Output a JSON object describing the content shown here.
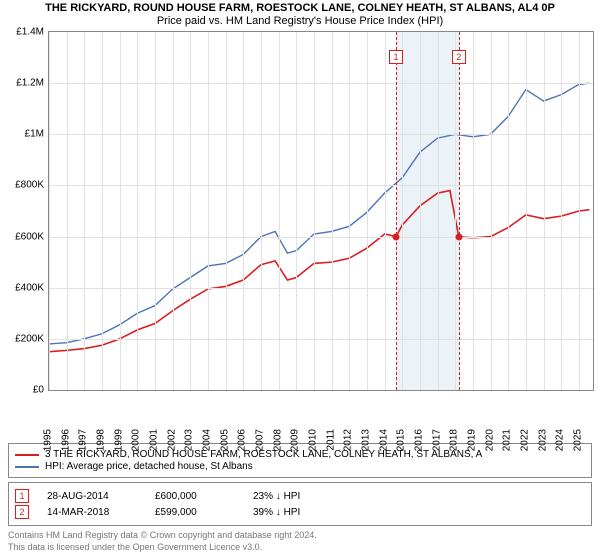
{
  "title_line1": "THE RICKYARD, ROUND HOUSE FARM, ROESTOCK LANE, COLNEY HEATH, ST ALBANS, AL4 0P",
  "title_line2": "Price paid vs. HM Land Registry's House Price Index (HPI)",
  "chart": {
    "type": "line",
    "y_min": 0,
    "y_max": 1400000,
    "y_tick_step": 200000,
    "y_labels": [
      "£0",
      "£200K",
      "£400K",
      "£600K",
      "£800K",
      "£1M",
      "£1.2M",
      "£1.4M"
    ],
    "x_min": 1995,
    "x_max": 2025.8,
    "x_ticks": [
      1995,
      1996,
      1997,
      1998,
      1999,
      2000,
      2001,
      2002,
      2003,
      2004,
      2005,
      2006,
      2007,
      2008,
      2009,
      2010,
      2011,
      2012,
      2013,
      2014,
      2015,
      2016,
      2017,
      2018,
      2019,
      2020,
      2021,
      2022,
      2023,
      2024,
      2025
    ],
    "grid_color": "#e2e2e2",
    "shade_color": "#dbe7f3",
    "shade_start": 2014.65,
    "shade_end": 2018.2,
    "series": {
      "price_paid": {
        "color": "#d81e1e",
        "width": 1.6,
        "label": "3 THE RICKYARD, ROUND HOUSE FARM, ROESTOCK LANE, COLNEY HEATH, ST ALBANS, A",
        "points": [
          [
            1995,
            150000
          ],
          [
            1996,
            155000
          ],
          [
            1997,
            162000
          ],
          [
            1998,
            175000
          ],
          [
            1999,
            200000
          ],
          [
            2000,
            235000
          ],
          [
            2001,
            260000
          ],
          [
            2002,
            310000
          ],
          [
            2003,
            355000
          ],
          [
            2004,
            395000
          ],
          [
            2005,
            405000
          ],
          [
            2006,
            430000
          ],
          [
            2007,
            490000
          ],
          [
            2007.8,
            505000
          ],
          [
            2008.5,
            430000
          ],
          [
            2009,
            440000
          ],
          [
            2010,
            495000
          ],
          [
            2011,
            500000
          ],
          [
            2012,
            515000
          ],
          [
            2013,
            555000
          ],
          [
            2014,
            610000
          ],
          [
            2014.65,
            600000
          ],
          [
            2015,
            645000
          ],
          [
            2016,
            720000
          ],
          [
            2017,
            770000
          ],
          [
            2017.7,
            780000
          ],
          [
            2018.2,
            599000
          ],
          [
            2019,
            595000
          ],
          [
            2020,
            600000
          ],
          [
            2021,
            635000
          ],
          [
            2022,
            685000
          ],
          [
            2023,
            670000
          ],
          [
            2024,
            680000
          ],
          [
            2025,
            700000
          ],
          [
            2025.6,
            705000
          ]
        ]
      },
      "hpi": {
        "color": "#4a74b8",
        "width": 1.4,
        "label": "HPI: Average price, detached house, St Albans",
        "points": [
          [
            1995,
            180000
          ],
          [
            1996,
            185000
          ],
          [
            1997,
            200000
          ],
          [
            1998,
            220000
          ],
          [
            1999,
            255000
          ],
          [
            2000,
            300000
          ],
          [
            2001,
            330000
          ],
          [
            2002,
            395000
          ],
          [
            2003,
            440000
          ],
          [
            2004,
            485000
          ],
          [
            2005,
            495000
          ],
          [
            2006,
            530000
          ],
          [
            2007,
            600000
          ],
          [
            2007.8,
            620000
          ],
          [
            2008.5,
            535000
          ],
          [
            2009,
            545000
          ],
          [
            2010,
            610000
          ],
          [
            2011,
            620000
          ],
          [
            2012,
            640000
          ],
          [
            2013,
            695000
          ],
          [
            2014,
            770000
          ],
          [
            2015,
            830000
          ],
          [
            2016,
            930000
          ],
          [
            2017,
            985000
          ],
          [
            2018,
            1000000
          ],
          [
            2019,
            990000
          ],
          [
            2020,
            1000000
          ],
          [
            2021,
            1070000
          ],
          [
            2022,
            1175000
          ],
          [
            2023,
            1130000
          ],
          [
            2024,
            1155000
          ],
          [
            2025,
            1195000
          ],
          [
            2025.6,
            1200000
          ]
        ]
      }
    },
    "markers": [
      {
        "id": "1",
        "x": 2014.65,
        "y": 600000,
        "color": "#d81e1e"
      },
      {
        "id": "2",
        "x": 2018.2,
        "y": 599000,
        "color": "#d81e1e"
      }
    ]
  },
  "legend": {
    "item1_label": "3 THE RICKYARD, ROUND HOUSE FARM, ROESTOCK LANE, COLNEY HEATH, ST ALBANS, A",
    "item2_label": "HPI: Average price, detached house, St Albans"
  },
  "sales": [
    {
      "id": "1",
      "date": "28-AUG-2014",
      "price": "£600,000",
      "note": "23% ↓ HPI",
      "color": "#d81e1e"
    },
    {
      "id": "2",
      "date": "14-MAR-2018",
      "price": "£599,000",
      "note": "39% ↓ HPI",
      "color": "#d81e1e"
    }
  ],
  "footer_line1": "Contains HM Land Registry data © Crown copyright and database right 2024.",
  "footer_line2": "This data is licensed under the Open Government Licence v3.0."
}
